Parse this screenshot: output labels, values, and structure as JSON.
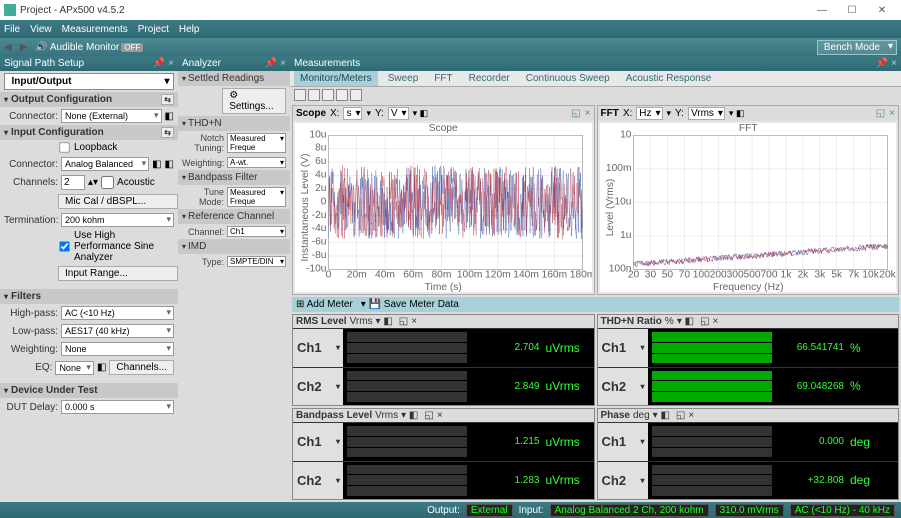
{
  "window": {
    "title": "Project - APx500 v4.5.2"
  },
  "menu": [
    "File",
    "View",
    "Measurements",
    "Project",
    "Help"
  ],
  "toolbar": {
    "audible": "Audible Monitor",
    "badge": "OFF",
    "bench": "Bench Mode"
  },
  "panels": {
    "sps": "Signal Path Setup",
    "analyzer": "Analyzer",
    "meas": "Measurements"
  },
  "sps": {
    "io": "Input/Output",
    "oc": "Output Configuration",
    "ic": "Input Configuration",
    "filters": "Filters",
    "dut": "Device Under Test",
    "conn": "Connector:",
    "none": "None (External)",
    "loopback": "Loopback",
    "analog": "Analog Balanced",
    "channels": "Channels:",
    "ch_n": "2",
    "acoustic": "Acoustic",
    "miccal": "Mic Cal / dBSPL...",
    "term": "Termination:",
    "term_v": "200 kohm",
    "hisine": "Use High Performance Sine Analyzer",
    "inrange": "Input Range...",
    "hp": "High-pass:",
    "hp_v": "AC (<10 Hz)",
    "lp": "Low-pass:",
    "lp_v": "AES17 (40 kHz)",
    "wt": "Weighting:",
    "wt_v": "None",
    "eq": "EQ:",
    "eq_v": "None",
    "chbtn": "Channels...",
    "delay": "DUT Delay:",
    "delay_v": "0.000 s"
  },
  "analyzer": {
    "settled": "Settled Readings",
    "settings": "Settings...",
    "thd": "THD+N",
    "notch": "Notch Tuning:",
    "notch_v": "Measured Freque",
    "wt": "Weighting:",
    "wt_v": "A-wt.",
    "bp": "Bandpass Filter",
    "tune": "Tune Mode:",
    "tune_v": "Measured Freque",
    "ref": "Reference Channel",
    "ch": "Channel:",
    "ch_v": "Ch1",
    "imd": "IMD",
    "type": "Type:",
    "type_v": "SMPTE/DIN"
  },
  "tabs": [
    "Monitors/Meters",
    "Sweep",
    "FFT",
    "Recorder",
    "Continuous Sweep",
    "Acoustic Response"
  ],
  "scope": {
    "title": "Scope",
    "x": "X:",
    "xu": "s",
    "y": "Y:",
    "yu": "V",
    "chart_title": "Scope",
    "xlabel": "Time (s)",
    "ylabel": "Instantaneous Level (V)",
    "xticks": [
      "0",
      "20m",
      "40m",
      "60m",
      "80m",
      "100m",
      "120m",
      "140m",
      "160m",
      "180m"
    ],
    "yticks": [
      "-10u",
      "-8u",
      "-6u",
      "-4u",
      "-2u",
      "0",
      "2u",
      "4u",
      "6u",
      "8u",
      "10u"
    ],
    "colors": {
      "ch1": "#b02030",
      "ch2": "#2040a0"
    }
  },
  "fft": {
    "title": "FFT",
    "x": "X:",
    "xu": "Hz",
    "y": "Y:",
    "yu": "Vrms",
    "chart_title": "FFT",
    "xlabel": "Frequency (Hz)",
    "ylabel": "Level (Vrms)",
    "xticks": [
      "20",
      "30",
      "50",
      "70",
      "100",
      "200",
      "300",
      "500",
      "700",
      "1k",
      "2k",
      "3k",
      "5k",
      "7k",
      "10k",
      "20k"
    ],
    "yticks": [
      "100n",
      "1u",
      "10u",
      "100m",
      "10"
    ],
    "colors": {
      "ch1": "#b02030",
      "ch2": "#2040a0"
    }
  },
  "meterbar": {
    "add": "⊞ Add Meter",
    "save": "▾ 💾 Save Meter Data"
  },
  "meters": {
    "rms": {
      "title": "RMS Level",
      "unit": "Vrms",
      "ch1": "Ch1",
      "ch2": "Ch2",
      "v1": "2.704",
      "u1": "uVrms",
      "v2": "2.849",
      "u2": "uVrms"
    },
    "thd": {
      "title": "THD+N Ratio",
      "unit": "%",
      "ch1": "Ch1",
      "ch2": "Ch2",
      "v1": "66.541741",
      "u1": "%",
      "v2": "69.048268",
      "u2": "%"
    },
    "bp": {
      "title": "Bandpass Level",
      "unit": "Vrms",
      "ch1": "Ch1",
      "ch2": "Ch2",
      "v1": "1.215",
      "u1": "uVrms",
      "v2": "1.283",
      "u2": "uVrms"
    },
    "ph": {
      "title": "Phase",
      "unit": "deg",
      "ch1": "Ch1",
      "ch2": "Ch2",
      "v1": "0.000",
      "u1": "deg",
      "v2": "+32.808",
      "u2": "deg"
    }
  },
  "status": {
    "output": "Output:",
    "out_v": "External",
    "input": "Input:",
    "in_v": "Analog Balanced 2 Ch, 200 kohm",
    "v2": "310.0 mVrms",
    "v3": "AC (<10 Hz) - 40 kHz"
  }
}
